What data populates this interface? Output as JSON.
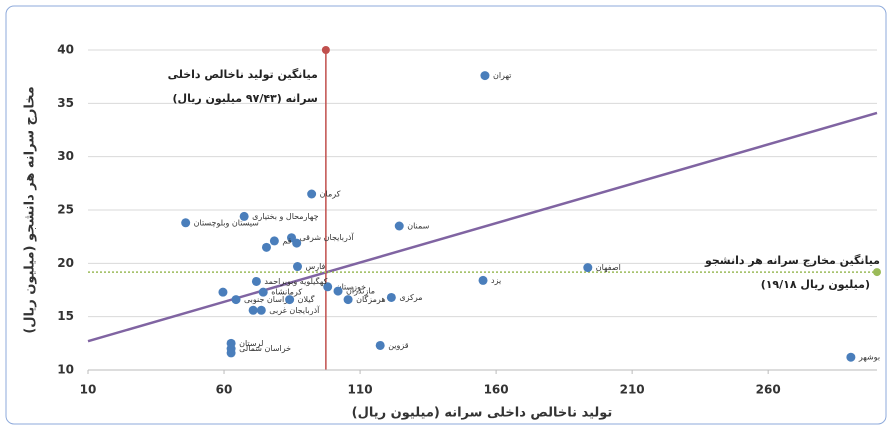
{
  "chart_data": {
    "type": "scatter",
    "x_label": "تولید ناخالص داخلی سرانه  (میلیون ریال)",
    "y_label": "مخارج سرانه هر دانشجو (میلیون ریال)",
    "xlim": [
      10,
      300
    ],
    "ylim": [
      10,
      40
    ],
    "xticks": [
      10,
      60,
      110,
      160,
      210,
      260
    ],
    "yticks": [
      10,
      15,
      20,
      25,
      30,
      35,
      40
    ],
    "grid": true,
    "color": "#4a7ebb",
    "x": [
      155.9,
      92.2,
      67.4,
      45.9,
      124.4,
      84.8,
      78.5,
      75.6,
      86.7,
      87,
      193.7,
      155.2,
      98.1,
      71.9,
      101.9,
      121.5,
      105.6,
      59.6,
      74.4,
      64.4,
      84.1,
      73.7,
      70.7,
      117.4,
      62.6,
      62.6,
      62.6,
      290.4
    ],
    "values": [
      37.6,
      26.5,
      24.4,
      23.8,
      23.5,
      22.4,
      22.1,
      21.5,
      21.9,
      19.7,
      19.6,
      18.4,
      17.8,
      18.3,
      17.4,
      16.8,
      16.6,
      17.3,
      17.3,
      16.6,
      16.6,
      15.6,
      15.6,
      12.3,
      12.5,
      12.0,
      11.6,
      11.2
    ],
    "point_labels": [
      "تهران",
      "کرمان",
      "چهارمحال و بختیاری",
      "سیستان وبلوچستان",
      "سمنان",
      "آذربایجان شرقی",
      "قم",
      null,
      null,
      "فارس",
      "اصفهان",
      "یزد",
      "خوزستان",
      "کهگیلویه وبویراحمد",
      "مازندران",
      "مرکزی",
      "هرمزگان",
      null,
      "کرمانشاه",
      "خراسان جنوبی",
      "گیلان",
      "آذربایجان غربی",
      null,
      "قزوین",
      "لرستان",
      "خراسان شمالی",
      null,
      "بوشهر"
    ],
    "x_mean": {
      "value": 97.43,
      "color": "#c0504d",
      "label": [
        "میانگین تولید ناخالص داخلی",
        "سرانه (۹۷/۴۳ میلیون ریال)"
      ]
    },
    "y_mean": {
      "value": 19.18,
      "color": "#9bbb59",
      "label": [
        "میانگین مخارج سرانه هر دانشجو",
        "(۱۹/۱۸ میلیون ریال)"
      ]
    },
    "trend": {
      "color": "#8064a2",
      "x": [
        10,
        300
      ],
      "y": [
        12.7,
        34.1
      ]
    }
  }
}
